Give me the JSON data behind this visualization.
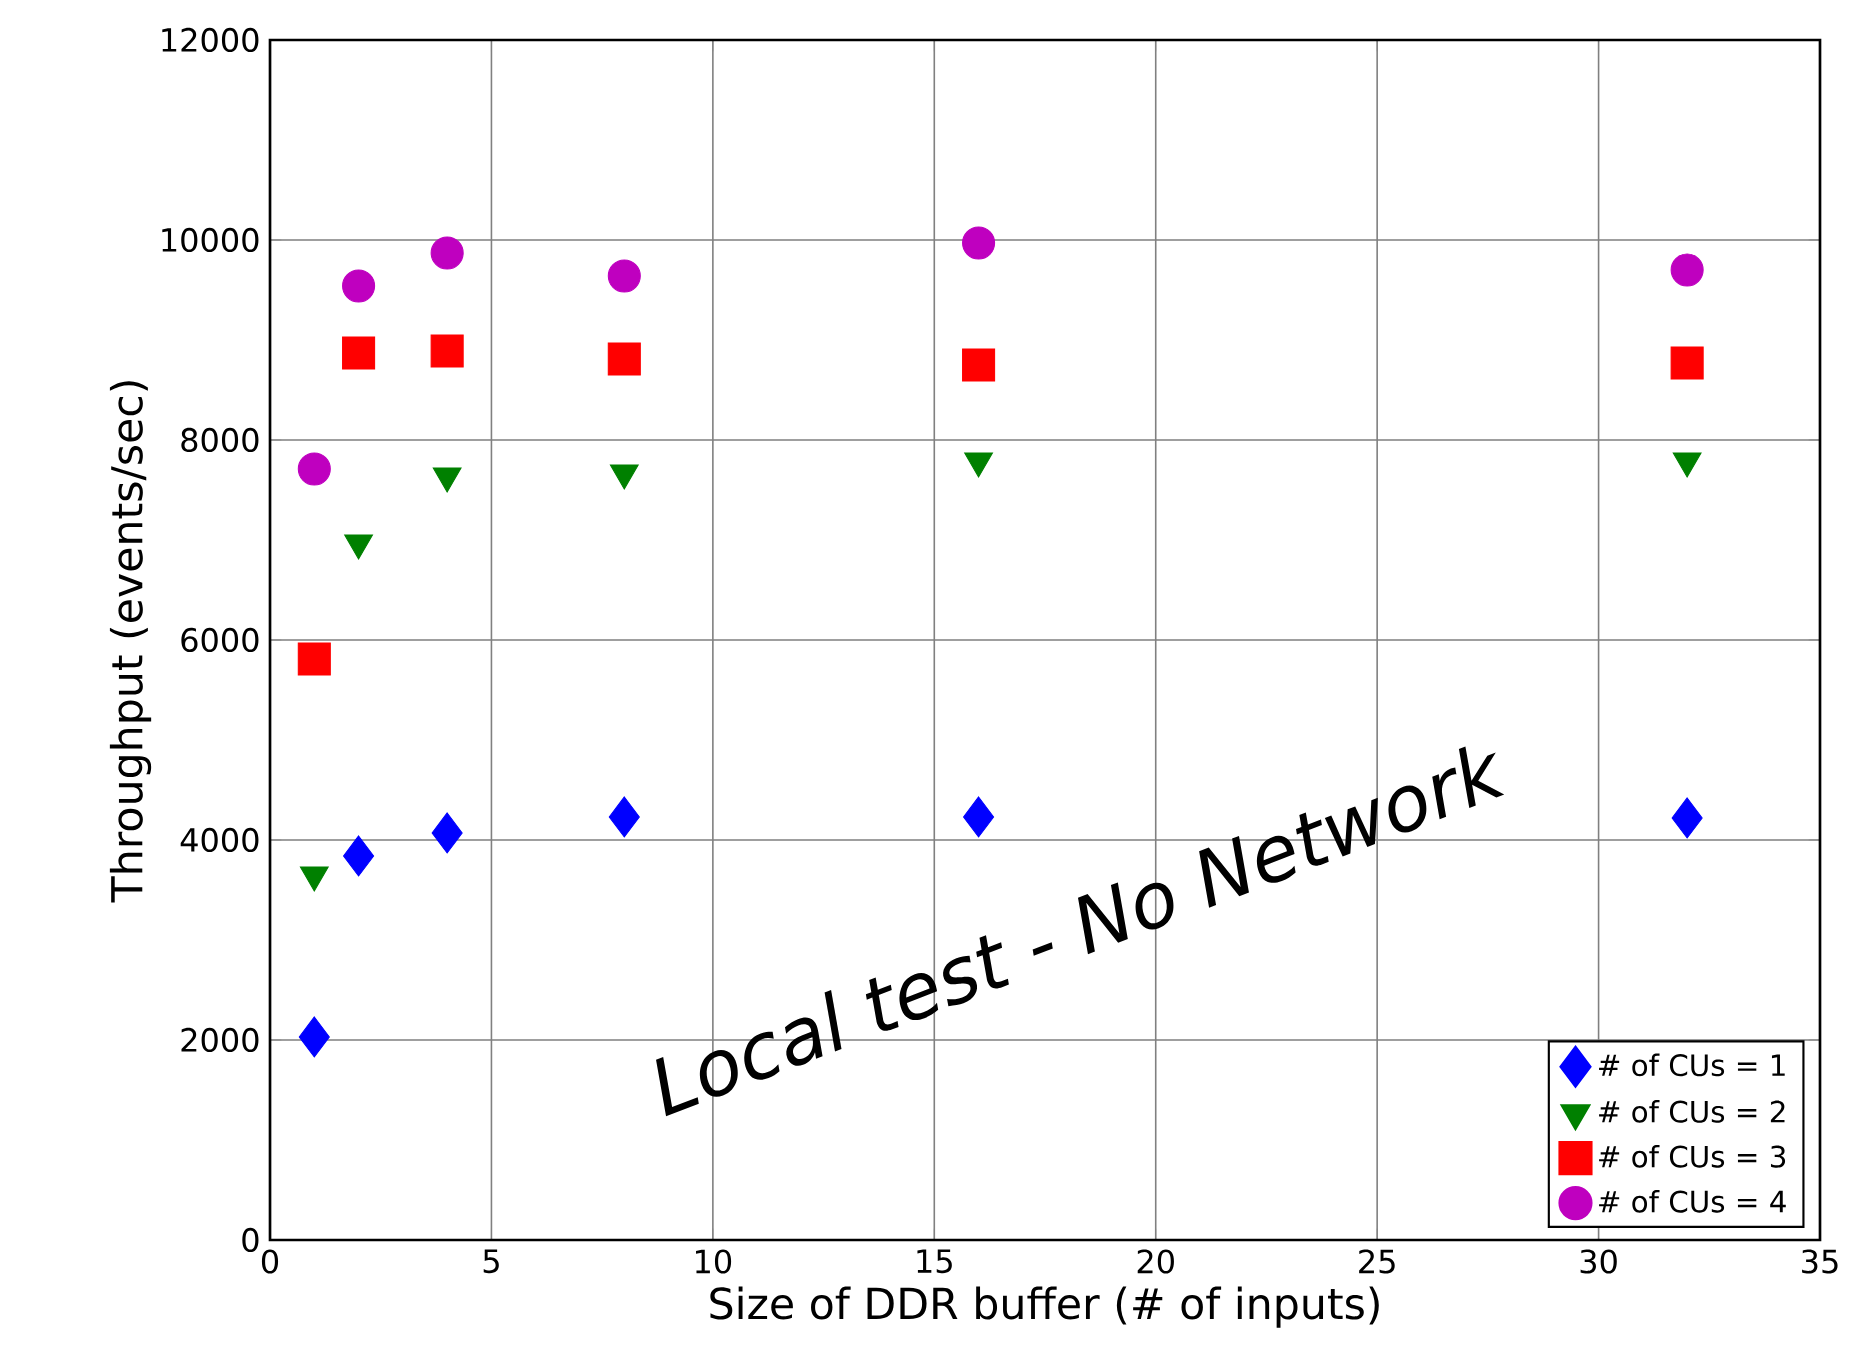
{
  "chart_data": {
    "type": "scatter",
    "xlabel": "Size of DDR buffer (# of inputs)",
    "ylabel": "Throughput (events/sec)",
    "x": [
      1,
      2,
      4,
      8,
      16,
      32
    ],
    "series": [
      {
        "name": "# of CUs = 1",
        "color": "#0000ff",
        "marker": "diamond",
        "values": [
          2030,
          3840,
          4070,
          4230,
          4230,
          4220
        ]
      },
      {
        "name": "# of CUs = 2",
        "color": "#008000",
        "marker": "triangle",
        "values": [
          3650,
          6970,
          7640,
          7670,
          7790,
          7790
        ]
      },
      {
        "name": "# of CUs = 3",
        "color": "#ff0000",
        "marker": "square",
        "values": [
          5810,
          8870,
          8890,
          8810,
          8750,
          8770
        ]
      },
      {
        "name": "# of CUs = 4",
        "color": "#bf00bf",
        "marker": "circle",
        "values": [
          7710,
          9540,
          9870,
          9640,
          9970,
          9700
        ]
      }
    ],
    "xlim": [
      0,
      35
    ],
    "ylim": [
      0,
      12000
    ],
    "xticks": [
      0,
      5,
      10,
      15,
      20,
      25,
      30,
      35
    ],
    "yticks": [
      0,
      2000,
      4000,
      6000,
      8000,
      10000,
      12000
    ],
    "grid": true,
    "legend": "bottom right",
    "annotations": [
      "Local test - No Network"
    ]
  }
}
